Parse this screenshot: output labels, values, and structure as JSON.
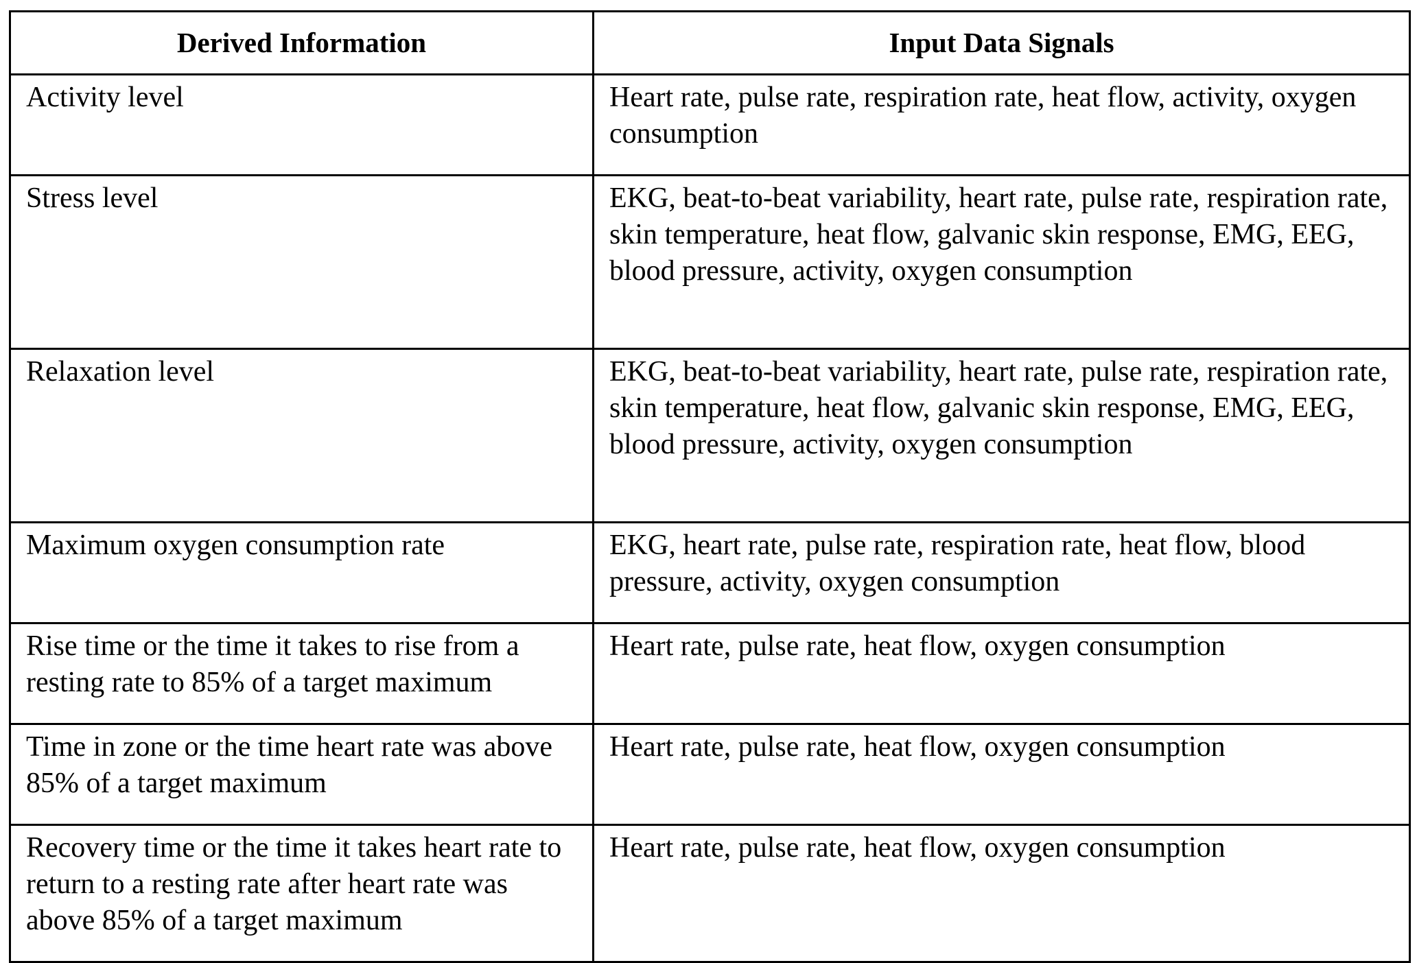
{
  "table": {
    "headers": [
      "Derived Information",
      "Input Data Signals"
    ],
    "rows": [
      {
        "derived": "Activity level",
        "inputs": "Heart rate, pulse rate, respiration rate, heat flow, activity, oxygen consumption"
      },
      {
        "derived": "Stress level",
        "inputs": "EKG, beat-to-beat variability, heart rate, pulse rate, respiration rate, skin temperature, heat flow, galvanic skin response, EMG, EEG, blood pressure, activity, oxygen consumption"
      },
      {
        "derived": "Relaxation level",
        "inputs": "EKG, beat-to-beat variability, heart rate, pulse rate, respiration rate, skin temperature, heat flow, galvanic skin response, EMG, EEG, blood pressure, activity, oxygen consumption"
      },
      {
        "derived": "Maximum oxygen consumption rate",
        "inputs": "EKG, heart rate, pulse rate, respiration rate, heat flow, blood pressure, activity, oxygen consumption"
      },
      {
        "derived": "Rise time or the time it takes to rise from a resting rate to 85% of a target maximum",
        "inputs": "Heart rate, pulse rate, heat flow, oxygen consumption"
      },
      {
        "derived": "Time in zone or the time heart rate was above 85% of a target maximum",
        "inputs": "Heart rate, pulse rate, heat flow, oxygen consumption"
      },
      {
        "derived": "Recovery time or the time it takes heart rate to return to a resting rate after heart rate was above 85% of a target maximum",
        "inputs": "Heart rate, pulse rate, heat flow, oxygen consumption"
      }
    ]
  }
}
